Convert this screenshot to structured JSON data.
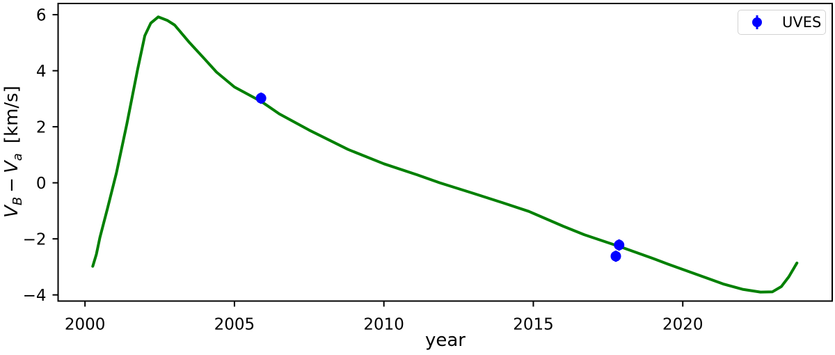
{
  "chart_data": {
    "type": "line",
    "title": "",
    "xlabel": "year",
    "ylabel": "V_B − V_a  [km/s]",
    "ylabel_parts": {
      "var1": "V",
      "sub1": "B",
      "operator": "−",
      "var2": "V",
      "sub2": "a",
      "units": "[km/s]"
    },
    "xlim": [
      1999.1,
      2025.0
    ],
    "ylim": [
      -4.22,
      6.4
    ],
    "xticks": [
      2000,
      2005,
      2010,
      2015,
      2020
    ],
    "xtick_labels": [
      "2000",
      "2005",
      "2010",
      "2015",
      "2020"
    ],
    "yticks": [
      -4,
      -2,
      0,
      2,
      4,
      6
    ],
    "ytick_labels": [
      "−4",
      "−2",
      "0",
      "2",
      "4",
      "6"
    ],
    "grid": false,
    "axis_color": "#000000",
    "legend": {
      "position": "upper right",
      "entries": [
        {
          "label": "UVES",
          "marker": "circle-errorbar",
          "color": "#0000ff"
        }
      ]
    },
    "series": [
      {
        "name": "model-curve",
        "type": "line",
        "color": "#008000",
        "linewidth": 4,
        "points": [
          [
            2000.26,
            -2.98
          ],
          [
            2000.38,
            -2.55
          ],
          [
            2000.5,
            -1.95
          ],
          [
            2000.75,
            -0.92
          ],
          [
            2001.05,
            0.35
          ],
          [
            2001.4,
            2.1
          ],
          [
            2001.76,
            4.05
          ],
          [
            2002.0,
            5.25
          ],
          [
            2002.2,
            5.7
          ],
          [
            2002.45,
            5.92
          ],
          [
            2002.75,
            5.8
          ],
          [
            2003.0,
            5.63
          ],
          [
            2003.5,
            5.0
          ],
          [
            2004.0,
            4.42
          ],
          [
            2004.4,
            3.95
          ],
          [
            2005.0,
            3.42
          ],
          [
            2005.9,
            2.9
          ],
          [
            2006.5,
            2.46
          ],
          [
            2007.5,
            1.88
          ],
          [
            2008.8,
            1.19
          ],
          [
            2010.0,
            0.68
          ],
          [
            2011.13,
            0.28
          ],
          [
            2011.87,
            0.0
          ],
          [
            2013.0,
            -0.38
          ],
          [
            2014.0,
            -0.72
          ],
          [
            2014.85,
            -1.02
          ],
          [
            2016.0,
            -1.55
          ],
          [
            2016.7,
            -1.85
          ],
          [
            2017.9,
            -2.28
          ],
          [
            2019.0,
            -2.7
          ],
          [
            2019.5,
            -2.9
          ],
          [
            2020.5,
            -3.28
          ],
          [
            2021.35,
            -3.61
          ],
          [
            2022.0,
            -3.8
          ],
          [
            2022.6,
            -3.9
          ],
          [
            2023.0,
            -3.89
          ],
          [
            2023.3,
            -3.7
          ],
          [
            2023.55,
            -3.35
          ],
          [
            2023.82,
            -2.86
          ]
        ]
      },
      {
        "name": "UVES",
        "type": "scatter-errorbar",
        "color": "#0000ff",
        "marker_radius": 7.5,
        "points": [
          {
            "x": 2005.89,
            "y": 3.02,
            "yerr": 0.2
          },
          {
            "x": 2017.76,
            "y": -2.62,
            "yerr": 0.2
          },
          {
            "x": 2017.87,
            "y": -2.22,
            "yerr": 0.2
          }
        ]
      }
    ]
  }
}
